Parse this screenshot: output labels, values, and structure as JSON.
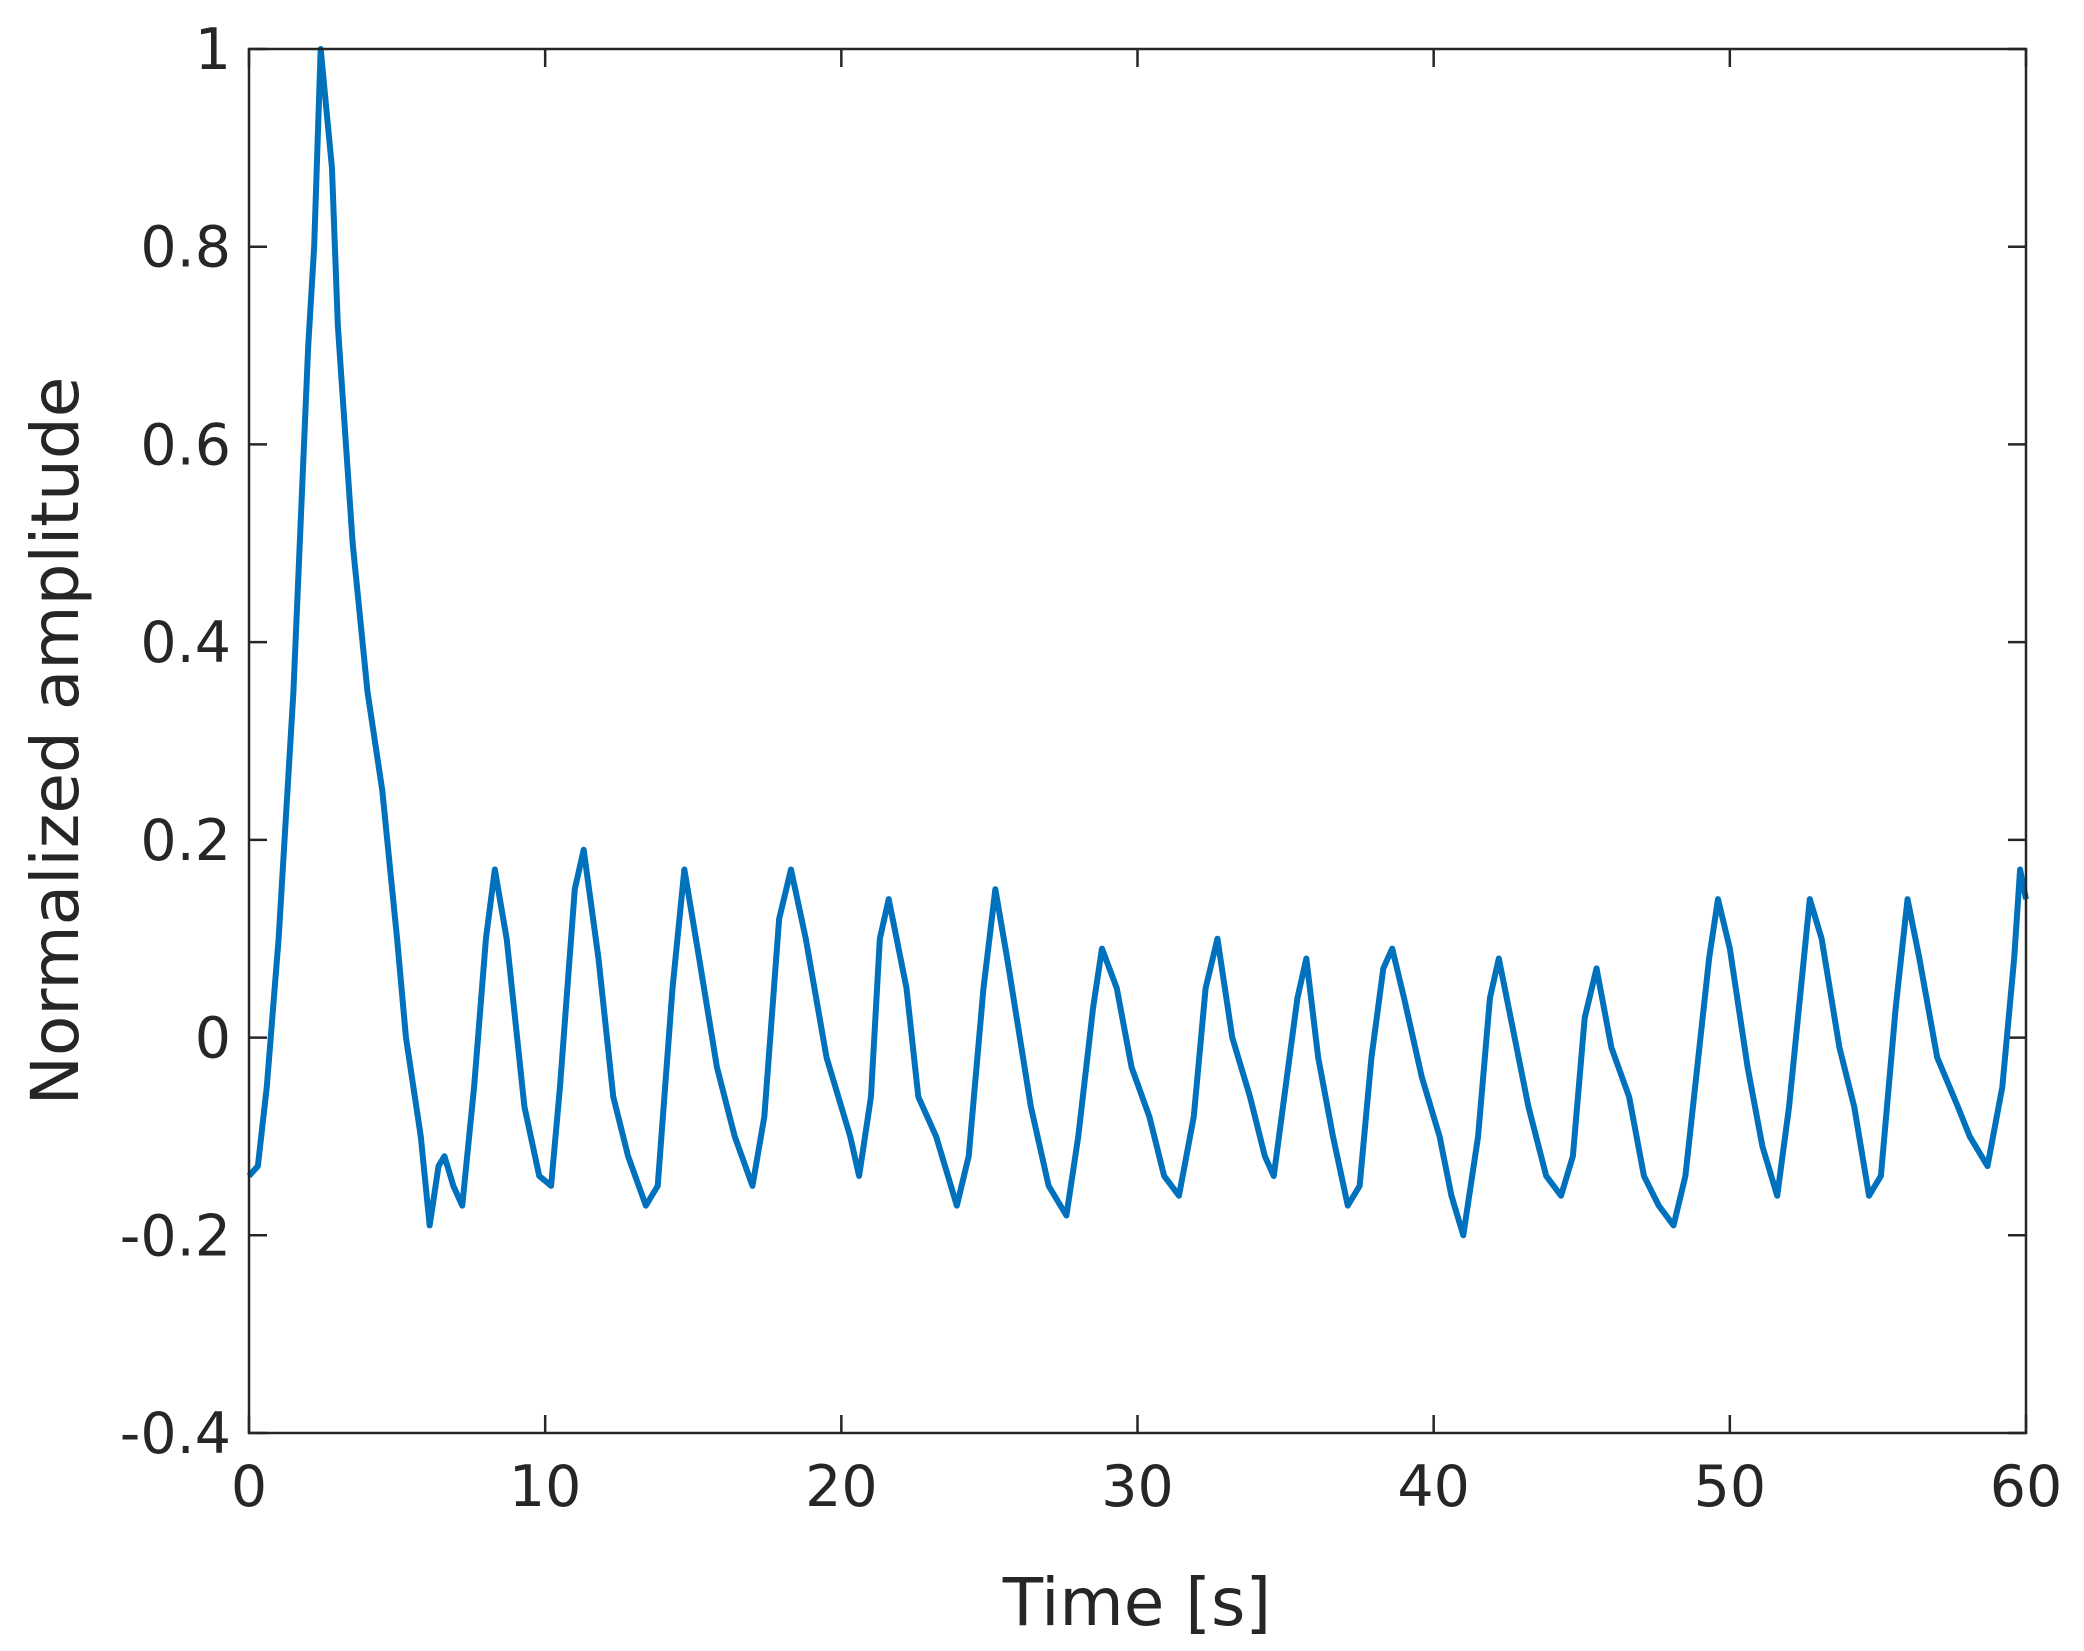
{
  "chart_data": {
    "type": "line",
    "xlabel": "Time [s]",
    "ylabel": "Normalized amplitude",
    "xlim": [
      0,
      60
    ],
    "ylim": [
      -0.4,
      1
    ],
    "xticks": [
      0,
      10,
      20,
      30,
      40,
      50,
      60
    ],
    "yticks": [
      -0.4,
      -0.2,
      0,
      0.2,
      0.4,
      0.6,
      0.8,
      1
    ],
    "grid": false,
    "box": true,
    "series": [
      {
        "color": "#0072bd",
        "x": [
          0,
          0.3,
          0.6,
          1.0,
          1.5,
          2.0,
          2.2,
          2.42,
          2.8,
          3.0,
          3.5,
          4.0,
          4.5,
          5.0,
          5.3,
          5.8,
          6.1,
          6.4,
          6.6,
          6.9,
          7.2,
          7.6,
          8.0,
          8.3,
          8.7,
          9.3,
          9.8,
          10.2,
          10.5,
          11.0,
          11.3,
          11.8,
          12.3,
          12.8,
          13.4,
          13.8,
          14.3,
          14.7,
          15.2,
          15.8,
          16.4,
          17.0,
          17.4,
          17.9,
          18.3,
          18.8,
          19.5,
          20.3,
          20.6,
          21.0,
          21.3,
          21.6,
          22.2,
          22.6,
          23.2,
          23.9,
          24.3,
          24.8,
          25.2,
          25.6,
          26.4,
          27.0,
          27.6,
          28.0,
          28.5,
          28.8,
          29.3,
          29.8,
          30.4,
          30.9,
          31.4,
          31.9,
          32.3,
          32.7,
          33.2,
          33.8,
          34.3,
          34.6,
          35.0,
          35.4,
          35.7,
          36.1,
          36.6,
          37.1,
          37.5,
          37.9,
          38.3,
          38.6,
          39.0,
          39.6,
          40.2,
          40.6,
          41.0,
          41.5,
          41.9,
          42.2,
          42.6,
          43.2,
          43.8,
          44.3,
          44.7,
          45.1,
          45.5,
          46.0,
          46.6,
          47.1,
          47.6,
          48.1,
          48.5,
          48.9,
          49.3,
          49.6,
          50.0,
          50.6,
          51.1,
          51.6,
          52.0,
          52.4,
          52.7,
          53.1,
          53.7,
          54.2,
          54.7,
          55.1,
          55.6,
          56.0,
          56.4,
          57.0,
          57.7,
          58.1,
          58.7,
          59.2,
          59.6,
          59.8,
          60.0
        ],
        "values": [
          -0.14,
          -0.13,
          -0.05,
          0.1,
          0.35,
          0.7,
          0.8,
          1.0,
          0.88,
          0.72,
          0.5,
          0.35,
          0.25,
          0.1,
          0.0,
          -0.1,
          -0.19,
          -0.13,
          -0.12,
          -0.15,
          -0.17,
          -0.05,
          0.1,
          0.17,
          0.1,
          -0.07,
          -0.14,
          -0.15,
          -0.05,
          0.15,
          0.19,
          0.08,
          -0.06,
          -0.12,
          -0.17,
          -0.15,
          0.05,
          0.17,
          0.08,
          -0.03,
          -0.1,
          -0.15,
          -0.08,
          0.12,
          0.17,
          0.1,
          -0.02,
          -0.1,
          -0.14,
          -0.06,
          0.1,
          0.14,
          0.05,
          -0.06,
          -0.1,
          -0.17,
          -0.12,
          0.05,
          0.15,
          0.08,
          -0.07,
          -0.15,
          -0.18,
          -0.1,
          0.03,
          0.09,
          0.05,
          -0.03,
          -0.08,
          -0.14,
          -0.16,
          -0.08,
          0.05,
          0.1,
          0.0,
          -0.06,
          -0.12,
          -0.14,
          -0.05,
          0.04,
          0.08,
          -0.02,
          -0.1,
          -0.17,
          -0.15,
          -0.02,
          0.07,
          0.09,
          0.04,
          -0.04,
          -0.1,
          -0.16,
          -0.2,
          -0.1,
          0.04,
          0.08,
          0.02,
          -0.07,
          -0.14,
          -0.16,
          -0.12,
          0.02,
          0.07,
          -0.01,
          -0.06,
          -0.14,
          -0.17,
          -0.19,
          -0.14,
          -0.03,
          0.08,
          0.14,
          0.09,
          -0.03,
          -0.11,
          -0.16,
          -0.07,
          0.05,
          0.14,
          0.1,
          -0.01,
          -0.07,
          -0.16,
          -0.14,
          0.03,
          0.14,
          0.08,
          -0.02,
          -0.07,
          -0.1,
          -0.13,
          -0.05,
          0.08,
          0.17,
          0.14
        ]
      }
    ]
  }
}
